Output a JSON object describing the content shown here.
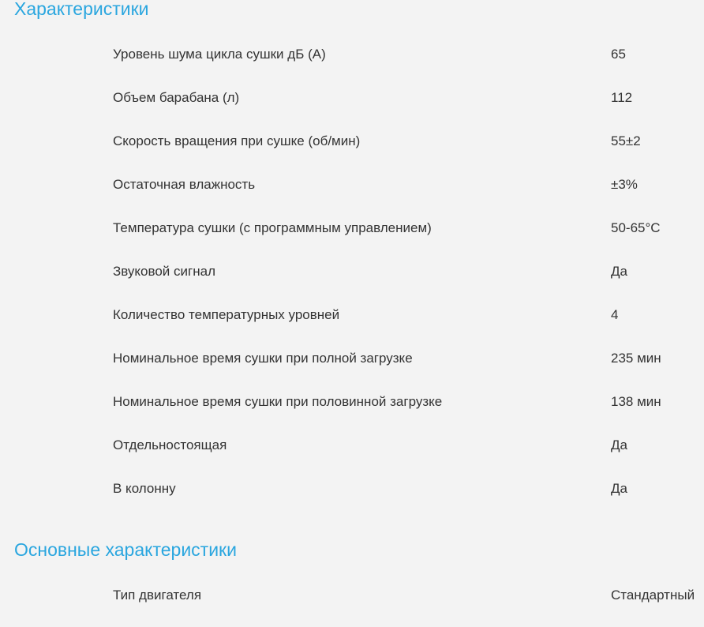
{
  "sections": [
    {
      "title": "Характеристики",
      "rows": [
        {
          "label": "Уровень шума цикла сушки дБ (А)",
          "value": "65"
        },
        {
          "label": "Объем барабана (л)",
          "value": "112"
        },
        {
          "label": "Скорость вращения при сушке (об/мин)",
          "value": "55±2"
        },
        {
          "label": "Остаточная влажность",
          "value": "±3%"
        },
        {
          "label": "Температура сушки (с программным управлением)",
          "value": "50-65°C"
        },
        {
          "label": "Звуковой сигнал",
          "value": "Да"
        },
        {
          "label": "Количество температурных уровней",
          "value": "4"
        },
        {
          "label": "Номинальное время сушки при полной загрузке",
          "value": "235 мин"
        },
        {
          "label": "Номинальное время сушки при половинной загрузке",
          "value": "138 мин"
        },
        {
          "label": "Отдельностоящая",
          "value": "Да"
        },
        {
          "label": "В колонну",
          "value": "Да"
        }
      ]
    },
    {
      "title": "Основные характеристики",
      "rows": [
        {
          "label": "Тип двигателя",
          "value": "Стандартный"
        }
      ]
    }
  ],
  "colors": {
    "accent": "#2aa6df",
    "background": "#f3f3f3",
    "text": "#333333"
  }
}
